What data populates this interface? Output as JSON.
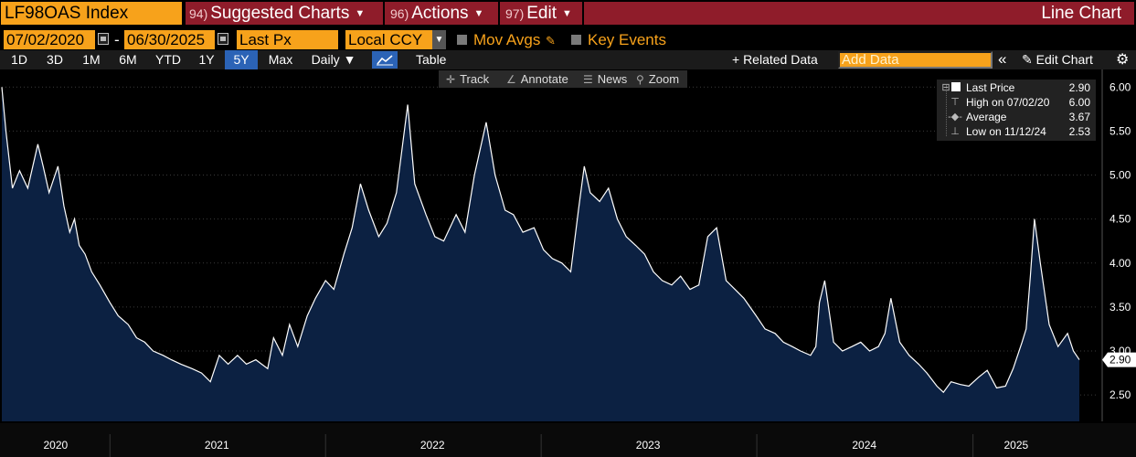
{
  "header": {
    "ticker": "LF98OAS Index",
    "menus": [
      {
        "num": "94)",
        "label": "Suggested Charts"
      },
      {
        "num": "96)",
        "label": "Actions"
      },
      {
        "num": "97)",
        "label": "Edit"
      }
    ],
    "chart_type": "Line Chart"
  },
  "controls": {
    "start_date": "07/02/2020",
    "end_date": "06/30/2025",
    "date_sep": "-",
    "field": "Last Px",
    "currency": "Local CCY",
    "mov_avgs": "Mov Avgs",
    "key_events": "Key Events"
  },
  "toolbar": {
    "ranges": [
      "1D",
      "3D",
      "1M",
      "6M",
      "YTD",
      "1Y",
      "5Y",
      "Max"
    ],
    "selected_range": "5Y",
    "frequency": "Daily ▼",
    "table_label": "Table",
    "related_data": "+ Related Data",
    "add_data_placeholder": "Add Data",
    "collapse": "«",
    "edit_chart": "Edit Chart",
    "tools": [
      "Track",
      "Annotate",
      "News",
      "Zoom"
    ]
  },
  "legend": {
    "rows": [
      {
        "label": "Last Price",
        "value": "2.90"
      },
      {
        "label": "High on 07/02/20",
        "value": "6.00"
      },
      {
        "label": "Average",
        "value": "3.67"
      },
      {
        "label": "Low on 11/12/24",
        "value": "2.53"
      }
    ]
  },
  "colors": {
    "orange": "#f7a21b",
    "menu_red": "#8f1c2a",
    "area_fill": "#0c2142",
    "line": "#ffffff",
    "select_blue": "#2b63b6"
  },
  "chart_data": {
    "type": "area",
    "ylim": [
      2.2,
      6.2
    ],
    "y_ticks": [
      2.5,
      3.0,
      3.5,
      4.0,
      4.5,
      5.0,
      5.5,
      6.0
    ],
    "y_tick_labels": [
      "2.50",
      "3.00",
      "3.50",
      "4.00",
      "4.50",
      "5.00",
      "5.50",
      "6.00"
    ],
    "last_value_label": "2.90",
    "x_labels": [
      "2020",
      "2021",
      "2022",
      "2023",
      "2024",
      "2025"
    ],
    "x_label_dates": [
      "2020-10-01",
      "2021-07-01",
      "2022-07-01",
      "2023-07-01",
      "2024-07-01",
      "2025-03-15"
    ],
    "x_year_starts": [
      "2021-01-01",
      "2022-01-01",
      "2023-01-01",
      "2024-01-01",
      "2025-01-01"
    ],
    "x_range": [
      "2020-07-02",
      "2025-06-30"
    ],
    "series": [
      {
        "x": [
          "2020-07-02",
          "2020-07-09",
          "2020-07-20",
          "2020-08-01",
          "2020-08-15",
          "2020-09-01",
          "2020-09-10",
          "2020-09-20",
          "2020-10-05",
          "2020-10-15",
          "2020-10-25",
          "2020-11-02",
          "2020-11-10",
          "2020-11-20",
          "2020-12-01",
          "2020-12-15",
          "2021-01-01",
          "2021-01-15",
          "2021-02-01",
          "2021-02-15",
          "2021-03-01",
          "2021-03-15",
          "2021-04-01",
          "2021-04-15",
          "2021-05-01",
          "2021-05-20",
          "2021-06-05",
          "2021-06-20",
          "2021-07-05",
          "2021-07-20",
          "2021-08-05",
          "2021-08-20",
          "2021-09-05",
          "2021-09-25",
          "2021-10-05",
          "2021-10-20",
          "2021-11-01",
          "2021-11-15",
          "2021-12-01",
          "2021-12-15",
          "2022-01-01",
          "2022-01-15",
          "2022-02-01",
          "2022-02-15",
          "2022-03-01",
          "2022-03-15",
          "2022-04-01",
          "2022-04-15",
          "2022-05-01",
          "2022-05-20",
          "2022-06-01",
          "2022-06-20",
          "2022-07-05",
          "2022-07-20",
          "2022-08-10",
          "2022-08-25",
          "2022-09-10",
          "2022-09-30",
          "2022-10-15",
          "2022-11-01",
          "2022-11-15",
          "2022-12-01",
          "2022-12-20",
          "2023-01-05",
          "2023-01-20",
          "2023-02-05",
          "2023-02-20",
          "2023-03-05",
          "2023-03-15",
          "2023-03-25",
          "2023-04-10",
          "2023-04-25",
          "2023-05-10",
          "2023-05-25",
          "2023-06-10",
          "2023-06-25",
          "2023-07-10",
          "2023-07-25",
          "2023-08-10",
          "2023-08-25",
          "2023-09-10",
          "2023-09-25",
          "2023-10-10",
          "2023-10-25",
          "2023-11-10",
          "2023-11-25",
          "2023-12-10",
          "2023-12-31",
          "2024-01-15",
          "2024-02-01",
          "2024-02-15",
          "2024-03-01",
          "2024-03-15",
          "2024-04-01",
          "2024-04-10",
          "2024-04-16",
          "2024-04-25",
          "2024-05-10",
          "2024-05-25",
          "2024-06-10",
          "2024-06-25",
          "2024-07-10",
          "2024-07-25",
          "2024-08-05",
          "2024-08-15",
          "2024-08-30",
          "2024-09-15",
          "2024-10-01",
          "2024-10-15",
          "2024-11-01",
          "2024-11-12",
          "2024-11-25",
          "2024-12-10",
          "2024-12-25",
          "2025-01-10",
          "2025-01-25",
          "2025-02-10",
          "2025-02-25",
          "2025-03-10",
          "2025-03-25",
          "2025-04-01",
          "2025-04-08",
          "2025-04-15",
          "2025-04-25",
          "2025-05-10",
          "2025-05-25",
          "2025-06-10",
          "2025-06-20",
          "2025-06-30"
        ],
        "values": [
          6.0,
          5.5,
          4.85,
          5.05,
          4.85,
          5.35,
          5.1,
          4.8,
          5.1,
          4.65,
          4.35,
          4.5,
          4.2,
          4.1,
          3.9,
          3.75,
          3.55,
          3.4,
          3.3,
          3.15,
          3.1,
          3.0,
          2.95,
          2.9,
          2.85,
          2.8,
          2.75,
          2.65,
          2.95,
          2.85,
          2.95,
          2.85,
          2.9,
          2.8,
          3.15,
          2.95,
          3.3,
          3.05,
          3.4,
          3.6,
          3.8,
          3.7,
          4.1,
          4.4,
          4.9,
          4.6,
          4.3,
          4.45,
          4.8,
          5.8,
          4.9,
          4.55,
          4.3,
          4.25,
          4.55,
          4.35,
          5.0,
          5.6,
          5.0,
          4.6,
          4.55,
          4.35,
          4.4,
          4.15,
          4.05,
          4.0,
          3.9,
          4.6,
          5.1,
          4.8,
          4.7,
          4.85,
          4.5,
          4.3,
          4.2,
          4.1,
          3.9,
          3.8,
          3.75,
          3.85,
          3.7,
          3.75,
          4.3,
          4.4,
          3.8,
          3.7,
          3.6,
          3.4,
          3.25,
          3.2,
          3.1,
          3.05,
          3.0,
          2.95,
          3.05,
          3.55,
          3.8,
          3.1,
          3.0,
          3.05,
          3.1,
          3.0,
          3.05,
          3.2,
          3.6,
          3.1,
          2.95,
          2.85,
          2.75,
          2.6,
          2.53,
          2.65,
          2.62,
          2.6,
          2.7,
          2.78,
          2.58,
          2.6,
          2.8,
          3.1,
          3.25,
          3.85,
          4.5,
          4.0,
          3.3,
          3.05,
          3.2,
          3.0,
          2.9
        ]
      }
    ]
  }
}
